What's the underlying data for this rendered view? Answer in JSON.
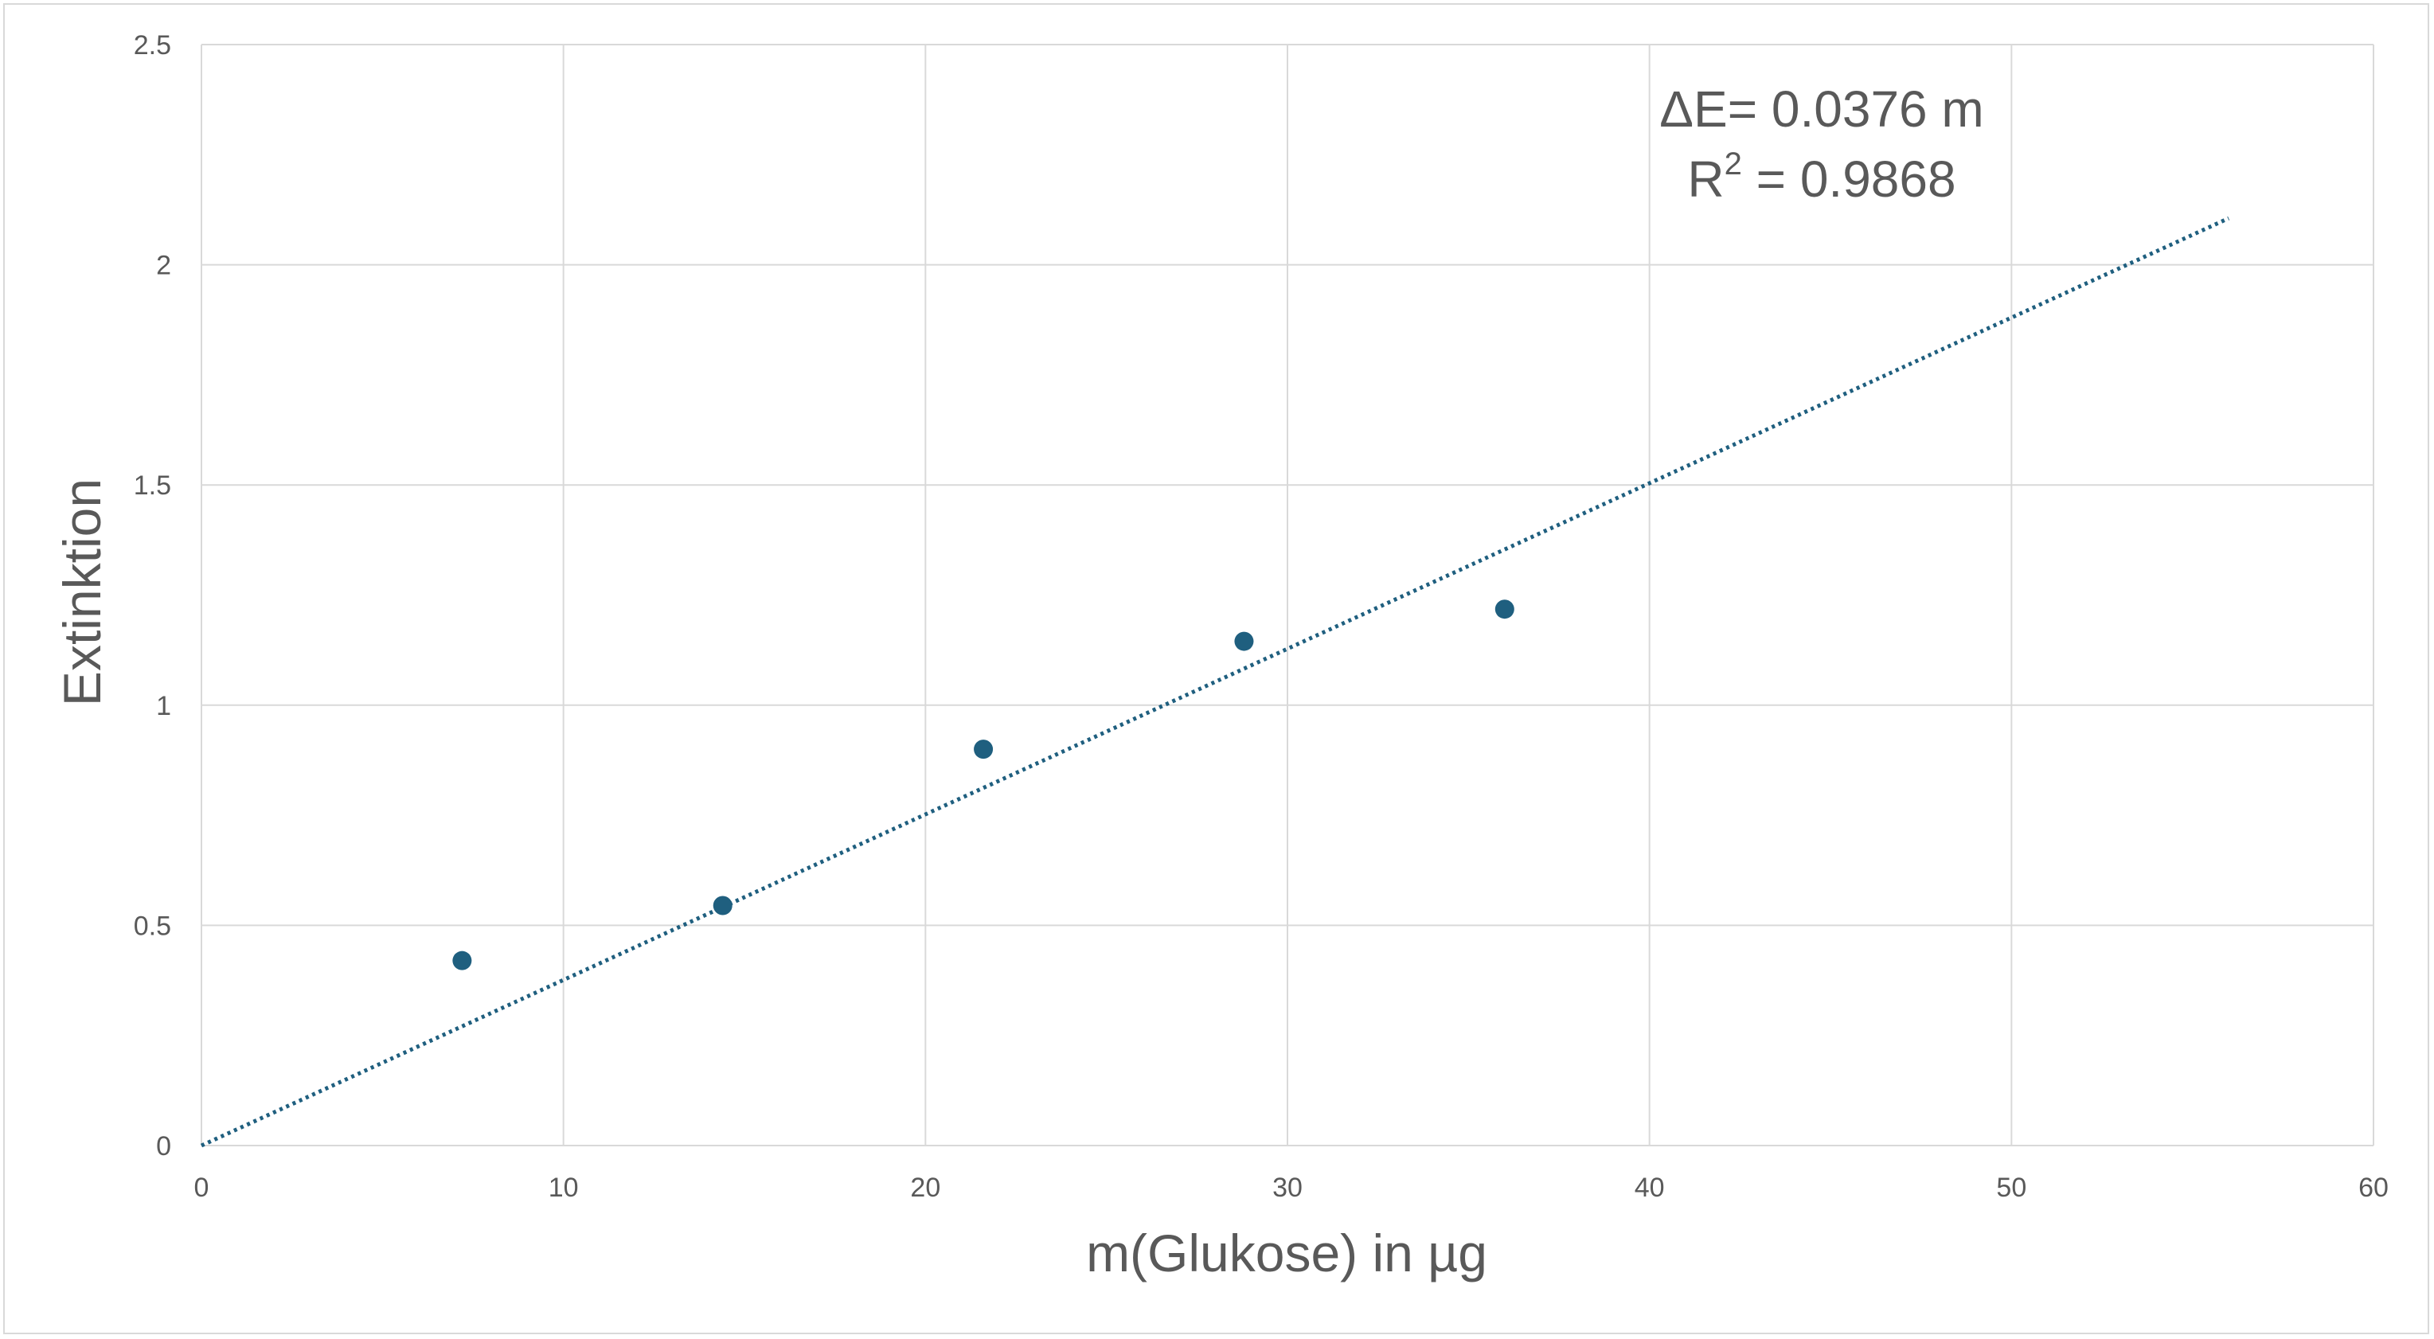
{
  "chart_data": {
    "type": "scatter",
    "title": "",
    "xlabel": "m(Glukose) in µg",
    "ylabel": "Extinktion",
    "xlim": [
      0,
      60
    ],
    "ylim": [
      0,
      2.5
    ],
    "x_ticks": [
      "0",
      "10",
      "20",
      "30",
      "40",
      "50",
      "60"
    ],
    "y_ticks": [
      "0",
      "0.5",
      "1",
      "1.5",
      "2",
      "2.5"
    ],
    "grid": true,
    "legend": "none",
    "series": [
      {
        "x": [
          7.2,
          14.4,
          21.6,
          28.8,
          36.0
        ],
        "y": [
          0.42,
          0.545,
          0.9,
          1.145,
          1.218
        ],
        "color": "#1f5f7f"
      }
    ],
    "trendline": {
      "type": "linear",
      "slope": 0.0376,
      "intercept": 0,
      "x_range": [
        0,
        56
      ],
      "style": "dotted",
      "color": "#1f5f7f"
    },
    "annotations": {
      "equation": "ΔE= 0.0376 m",
      "r_squared_prefix": "R",
      "r_squared_sup": "2",
      "r_squared_rest": " = 0.9868"
    }
  }
}
